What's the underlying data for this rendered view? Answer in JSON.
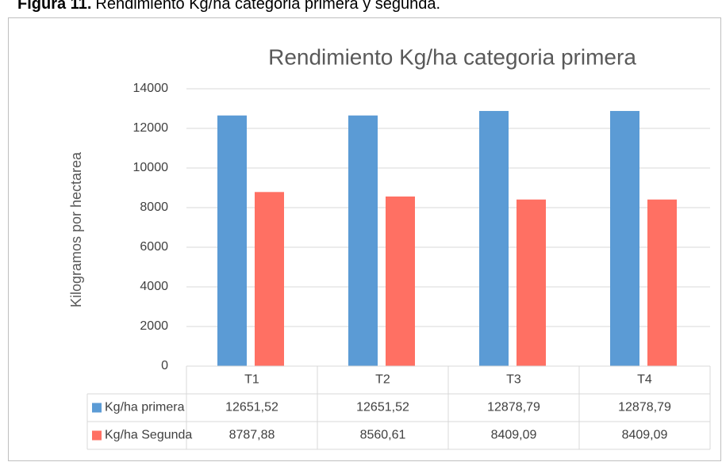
{
  "chart_data": {
    "type": "bar",
    "caption_label": "Figura 11.",
    "caption": "Rendimiento Kg/ha categoria primera y segunda.",
    "title": "Rendimiento Kg/ha categoria primera",
    "y_label": "Kilogramos por hectarea",
    "categories": [
      "T1",
      "T2",
      "T3",
      "T4"
    ],
    "series": [
      {
        "name": "Kg/ha primera",
        "color": "#5b9bd5",
        "values": [
          12651.52,
          12651.52,
          12878.79,
          12878.79
        ],
        "value_labels": [
          "12651,52",
          "12651,52",
          "12878,79",
          "12878,79"
        ]
      },
      {
        "name": "Kg/ha Segunda",
        "color": "#ff7063",
        "values": [
          8787.88,
          8560.61,
          8409.09,
          8409.09
        ],
        "value_labels": [
          "8787,88",
          "8560,61",
          "8409,09",
          "8409,09"
        ]
      }
    ],
    "ylim": [
      0,
      14000
    ],
    "yticks": [
      0,
      2000,
      4000,
      6000,
      8000,
      10000,
      12000,
      14000
    ],
    "grid": true
  }
}
